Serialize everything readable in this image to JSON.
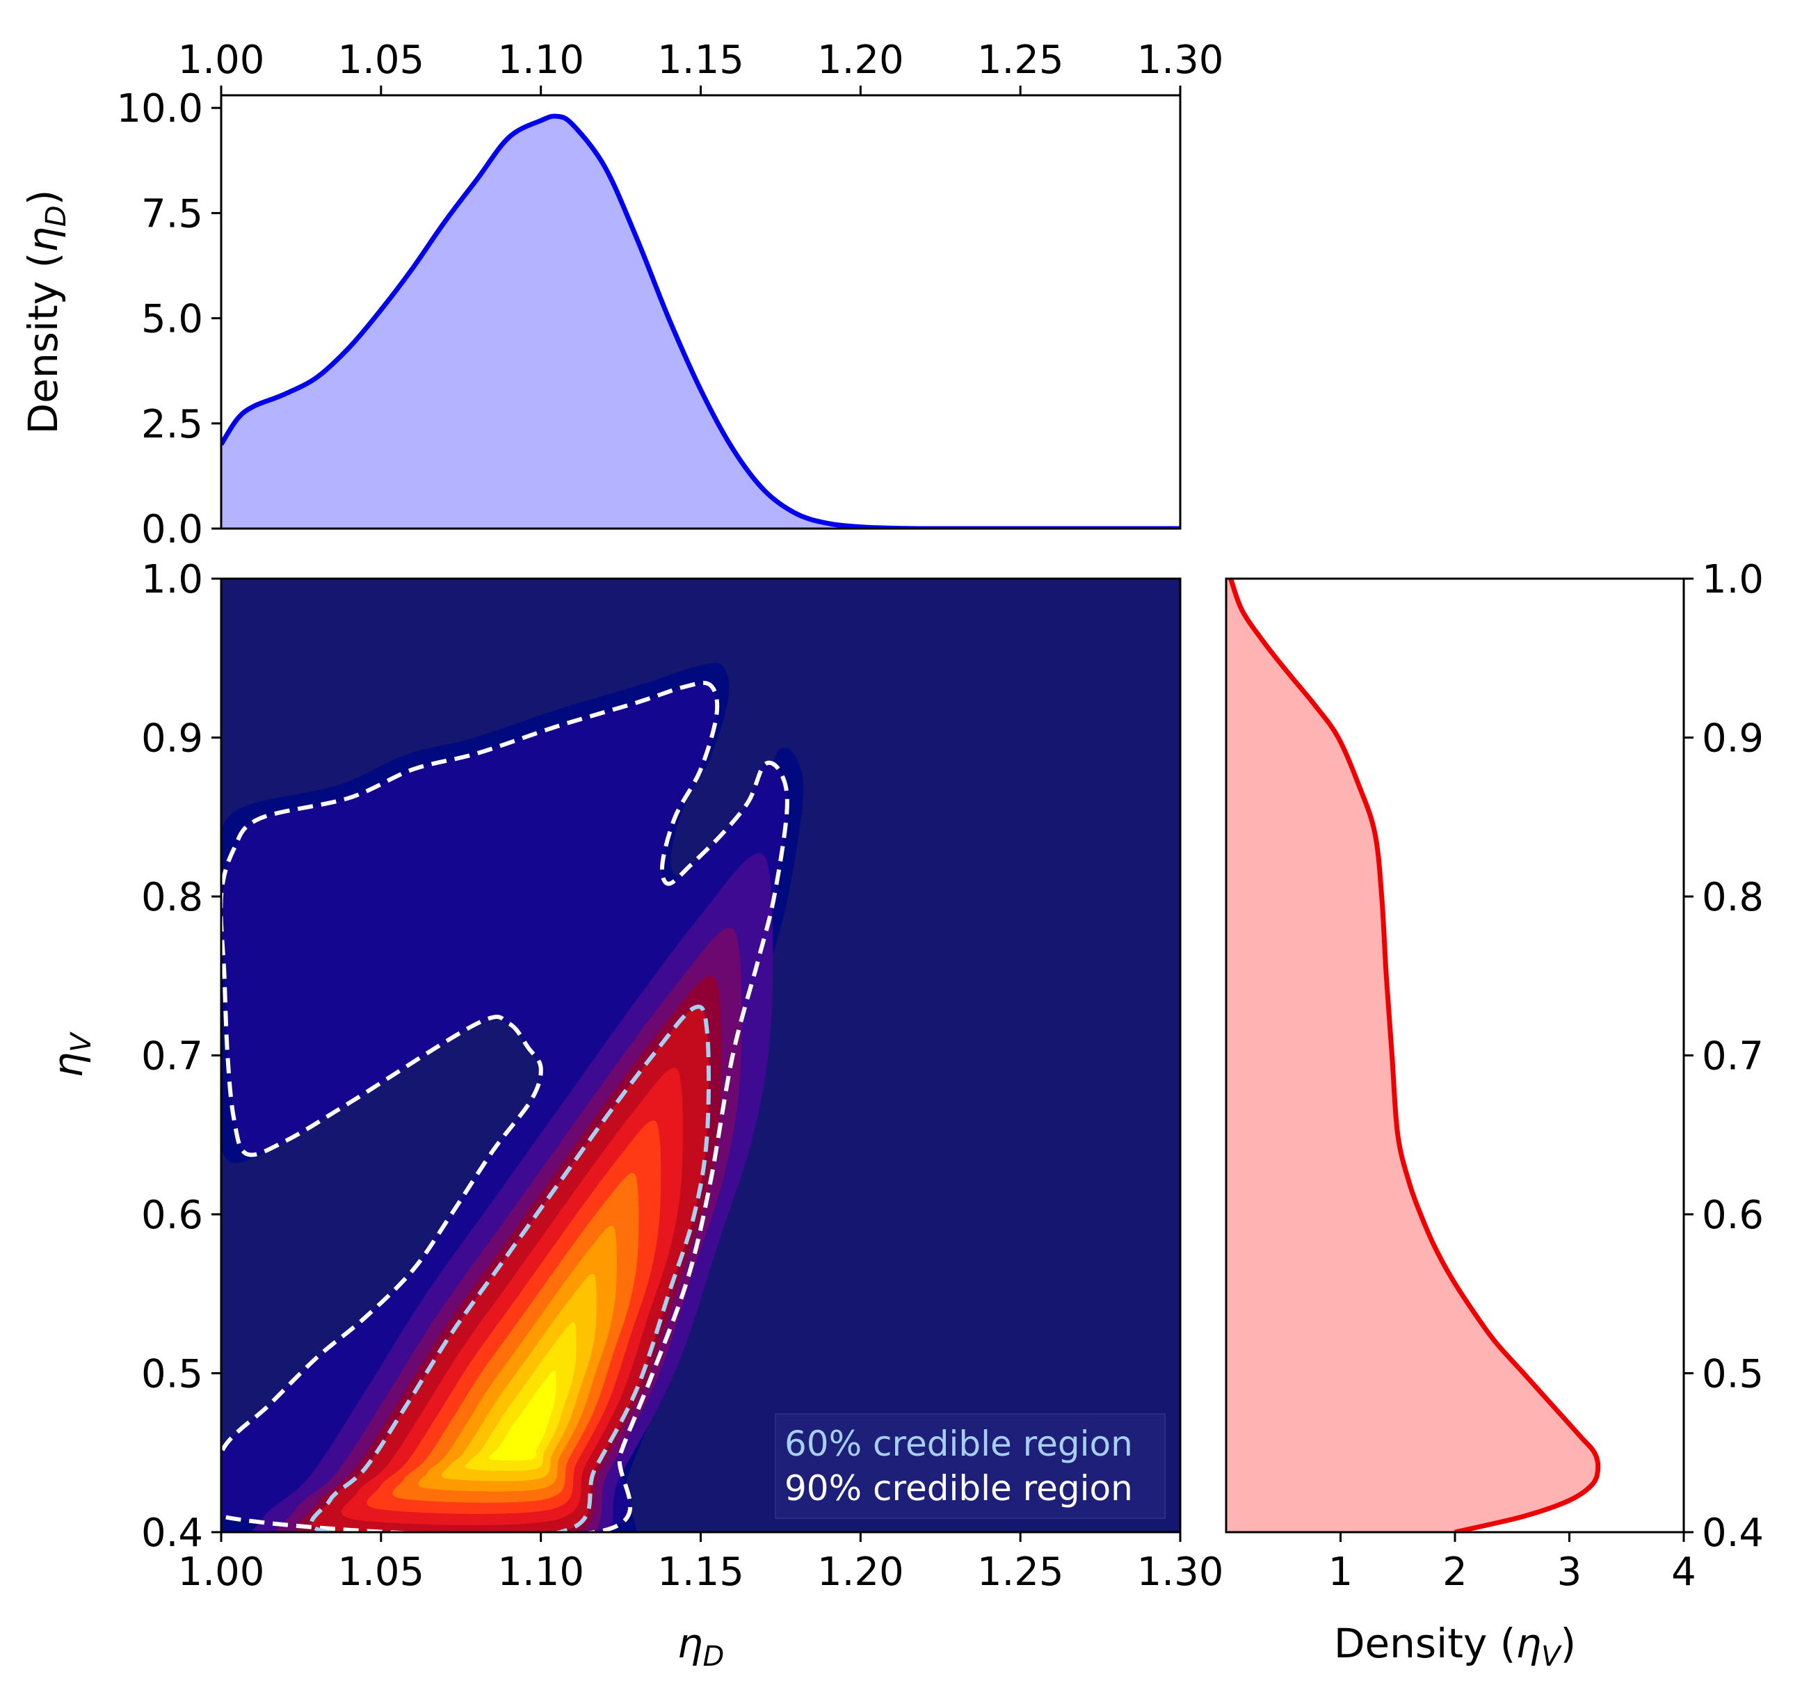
{
  "chart_data": [
    {
      "panel": "top-marginal",
      "type": "area",
      "xlabel": "",
      "ylabel_parts": [
        "Density (",
        "η",
        "D",
        ")"
      ],
      "xlim": [
        1.0,
        1.3
      ],
      "ylim": [
        0,
        10.3
      ],
      "xticks": [
        "1.00",
        "1.05",
        "1.10",
        "1.15",
        "1.20",
        "1.25",
        "1.30"
      ],
      "xticks_position": "top",
      "yticks": [
        "0.0",
        "2.5",
        "5.0",
        "7.5",
        "10.0"
      ],
      "line_color": "#0000ee",
      "fill_color": "#b3b3ff",
      "x": [
        1.0,
        1.005,
        1.01,
        1.02,
        1.03,
        1.04,
        1.05,
        1.06,
        1.07,
        1.08,
        1.09,
        1.1,
        1.105,
        1.11,
        1.12,
        1.13,
        1.14,
        1.15,
        1.16,
        1.17,
        1.18,
        1.19,
        1.2,
        1.21,
        1.22,
        1.25,
        1.3
      ],
      "y": [
        2.0,
        2.6,
        2.9,
        3.2,
        3.6,
        4.3,
        5.2,
        6.2,
        7.3,
        8.3,
        9.3,
        9.7,
        9.8,
        9.6,
        8.6,
        6.9,
        5.0,
        3.3,
        1.9,
        0.9,
        0.35,
        0.12,
        0.04,
        0.01,
        0.0,
        0.0,
        0.0
      ]
    },
    {
      "panel": "joint",
      "type": "heatmap",
      "xlabel_parts": [
        "η",
        "D"
      ],
      "ylabel_parts": [
        "η",
        "V"
      ],
      "xlim": [
        1.0,
        1.3
      ],
      "ylim": [
        0.4,
        1.0
      ],
      "xticks": [
        "1.00",
        "1.05",
        "1.10",
        "1.15",
        "1.20",
        "1.25",
        "1.30"
      ],
      "yticks": [
        "0.4",
        "0.5",
        "0.6",
        "0.7",
        "0.8",
        "0.9",
        "1.0"
      ],
      "background_color": "#15166f",
      "peak": {
        "x": 1.095,
        "y": 0.455
      },
      "contour_colors": [
        "#00097e",
        "#14068f",
        "#3d0a91",
        "#6d0870",
        "#8f0035",
        "#c40a1d",
        "#e8161d",
        "#ff3a14",
        "#ff6f0a",
        "#ff9a00",
        "#ffc200",
        "#ffe300",
        "#ffff00"
      ],
      "credible_90_color": "#ffffff",
      "credible_60_color": "#a6cff0",
      "credible_90_curve": [
        [
          1.0,
          0.41
        ],
        [
          1.0,
          0.45
        ],
        [
          1.015,
          0.48
        ],
        [
          1.03,
          0.51
        ],
        [
          1.045,
          0.535
        ],
        [
          1.06,
          0.565
        ],
        [
          1.072,
          0.6
        ],
        [
          1.085,
          0.64
        ],
        [
          1.097,
          0.672
        ],
        [
          1.1,
          0.692
        ],
        [
          1.096,
          0.705
        ],
        [
          1.09,
          0.72
        ],
        [
          1.08,
          0.72
        ],
        [
          1.04,
          0.67
        ],
        [
          1.02,
          0.646
        ],
        [
          1.008,
          0.638
        ],
        [
          1.004,
          0.66
        ],
        [
          1.002,
          0.7
        ],
        [
          1.001,
          0.75
        ],
        [
          1.0,
          0.8
        ],
        [
          1.004,
          0.83
        ],
        [
          1.012,
          0.849
        ],
        [
          1.04,
          0.862
        ],
        [
          1.06,
          0.88
        ],
        [
          1.08,
          0.89
        ],
        [
          1.105,
          0.907
        ],
        [
          1.13,
          0.922
        ],
        [
          1.145,
          0.932
        ],
        [
          1.153,
          0.933
        ],
        [
          1.155,
          0.915
        ],
        [
          1.15,
          0.88
        ],
        [
          1.142,
          0.85
        ],
        [
          1.138,
          0.82
        ],
        [
          1.14,
          0.808
        ],
        [
          1.147,
          0.82
        ],
        [
          1.157,
          0.84
        ],
        [
          1.165,
          0.86
        ],
        [
          1.17,
          0.883
        ],
        [
          1.175,
          0.878
        ],
        [
          1.177,
          0.855
        ],
        [
          1.173,
          0.8
        ],
        [
          1.168,
          0.76
        ],
        [
          1.16,
          0.7
        ],
        [
          1.153,
          0.62
        ],
        [
          1.146,
          0.56
        ],
        [
          1.135,
          0.5
        ],
        [
          1.125,
          0.45
        ],
        [
          1.117,
          0.4
        ]
      ],
      "credible_60_curve": [
        [
          1.034,
          0.4
        ],
        [
          1.034,
          0.42
        ],
        [
          1.045,
          0.44
        ],
        [
          1.058,
          0.48
        ],
        [
          1.072,
          0.525
        ],
        [
          1.088,
          0.57
        ],
        [
          1.104,
          0.615
        ],
        [
          1.12,
          0.66
        ],
        [
          1.135,
          0.7
        ],
        [
          1.148,
          0.73
        ],
        [
          1.152,
          0.715
        ],
        [
          1.152,
          0.65
        ],
        [
          1.148,
          0.6
        ],
        [
          1.14,
          0.55
        ],
        [
          1.13,
          0.49
        ],
        [
          1.117,
          0.44
        ],
        [
          1.106,
          0.4
        ]
      ],
      "legend": {
        "position": "lower-right",
        "entries": [
          {
            "label": "60% credible region",
            "color": "#a6cff0"
          },
          {
            "label": "90% credible region",
            "color": "#ffffff"
          }
        ],
        "background": "#1e1f78"
      }
    },
    {
      "panel": "right-marginal",
      "type": "area",
      "orientation": "horizontal",
      "xlabel_parts": [
        "Density (",
        "η",
        "V",
        ")"
      ],
      "xlim": [
        0.0,
        4.0
      ],
      "ylim": [
        0.4,
        1.0
      ],
      "xticks": [
        "1",
        "2",
        "3",
        "4"
      ],
      "yticks": [
        "0.4",
        "0.5",
        "0.6",
        "0.7",
        "0.8",
        "0.9",
        "1.0"
      ],
      "yticks_position": "right",
      "line_color": "#ee0000",
      "fill_color": "#ffb3b3",
      "y": [
        0.4,
        0.41,
        0.42,
        0.43,
        0.44,
        0.45,
        0.46,
        0.48,
        0.5,
        0.52,
        0.54,
        0.56,
        0.58,
        0.6,
        0.62,
        0.65,
        0.7,
        0.75,
        0.8,
        0.84,
        0.87,
        0.9,
        0.92,
        0.94,
        0.96,
        0.98,
        1.0
      ],
      "x": [
        2.0,
        2.6,
        3.0,
        3.2,
        3.25,
        3.22,
        3.1,
        2.85,
        2.6,
        2.35,
        2.15,
        1.97,
        1.82,
        1.7,
        1.6,
        1.5,
        1.45,
        1.4,
        1.36,
        1.3,
        1.16,
        0.98,
        0.78,
        0.55,
        0.33,
        0.14,
        0.04
      ]
    }
  ]
}
